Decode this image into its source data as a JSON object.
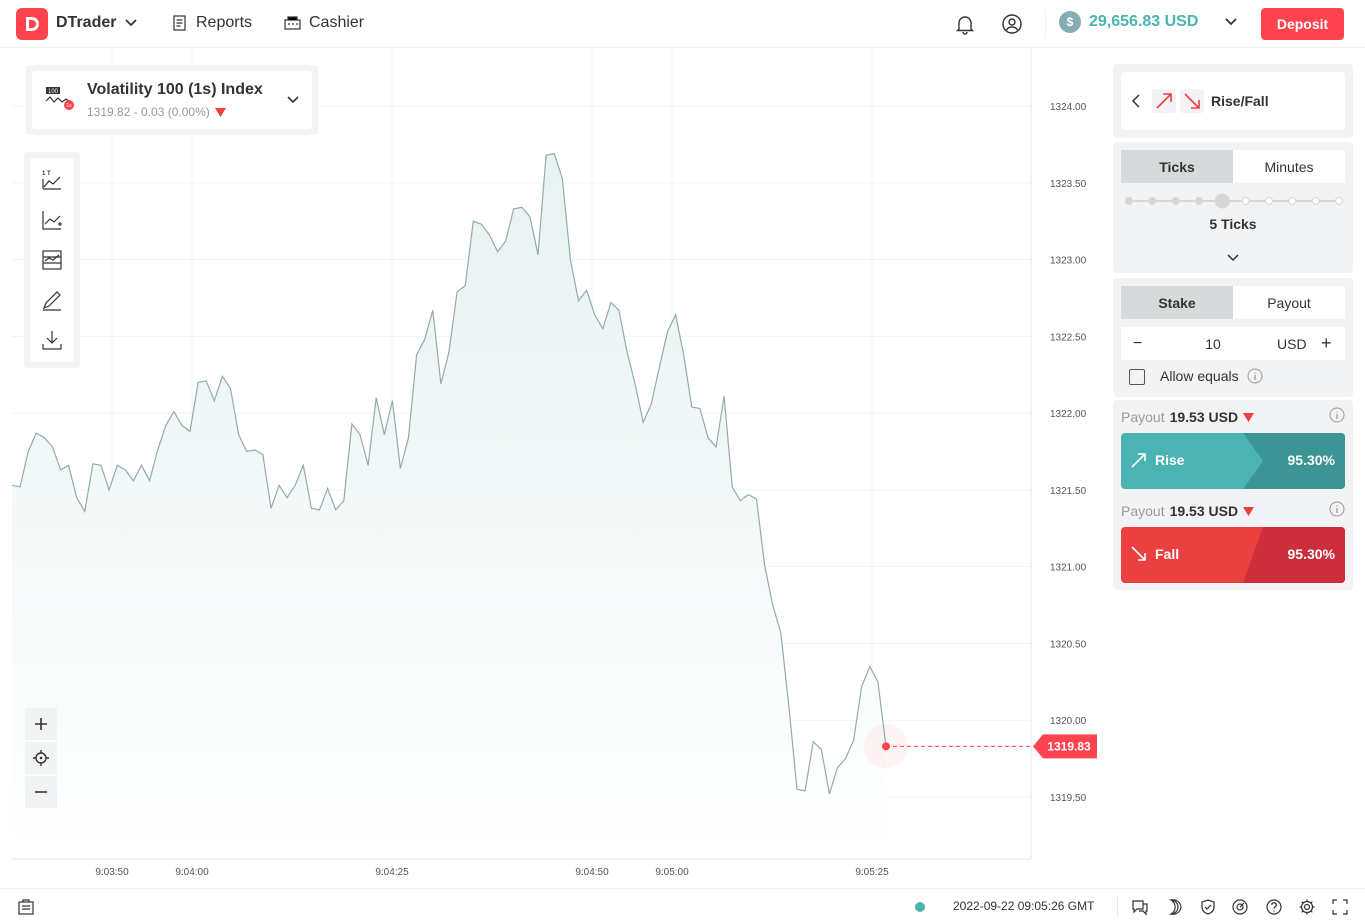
{
  "header": {
    "brand": "DTrader",
    "nav": [
      {
        "label": "Reports",
        "icon": "reports-icon"
      },
      {
        "label": "Cashier",
        "icon": "cashier-icon"
      }
    ],
    "balance": "29,656.83 USD",
    "deposit_label": "Deposit"
  },
  "market": {
    "name": "Volatility 100 (1s) Index",
    "price_change": "1319.82 - 0.03 (0.00%)",
    "badge_top": "100",
    "badge_bottom": "1s"
  },
  "chart_data": {
    "type": "area",
    "x_ticks": [
      "9:03:50",
      "9:04:00",
      "9:04:25",
      "9:04:50",
      "9:05:00",
      "9:05:25"
    ],
    "y_ticks": [
      "1324.00",
      "1323.50",
      "1323.00",
      "1322.50",
      "1322.00",
      "1321.50",
      "1321.00",
      "1320.50",
      "1320.00",
      "1319.50"
    ],
    "ylim": [
      1319.3,
      1324.2
    ],
    "current_price": "1319.83",
    "values": [
      1321.53,
      1321.52,
      1321.75,
      1321.87,
      1321.84,
      1321.78,
      1321.63,
      1321.66,
      1321.45,
      1321.36,
      1321.67,
      1321.66,
      1321.5,
      1321.66,
      1321.63,
      1321.56,
      1321.66,
      1321.56,
      1321.76,
      1321.92,
      1322.01,
      1321.92,
      1321.88,
      1322.2,
      1322.21,
      1322.08,
      1322.24,
      1322.16,
      1321.86,
      1321.75,
      1321.76,
      1321.73,
      1321.38,
      1321.53,
      1321.45,
      1321.53,
      1321.66,
      1321.38,
      1321.37,
      1321.51,
      1321.37,
      1321.43,
      1321.93,
      1321.86,
      1321.66,
      1322.1,
      1321.86,
      1322.08,
      1321.64,
      1321.84,
      1322.38,
      1322.48,
      1322.67,
      1322.19,
      1322.4,
      1322.79,
      1322.83,
      1323.25,
      1323.23,
      1323.16,
      1323.05,
      1323.12,
      1323.33,
      1323.34,
      1323.28,
      1323.03,
      1323.68,
      1323.69,
      1323.53,
      1323.0,
      1322.73,
      1322.8,
      1322.64,
      1322.55,
      1322.72,
      1322.67,
      1322.4,
      1322.19,
      1321.94,
      1322.06,
      1322.3,
      1322.53,
      1322.64,
      1322.38,
      1322.04,
      1322.03,
      1321.84,
      1321.78,
      1322.11,
      1321.52,
      1321.43,
      1321.47,
      1321.44,
      1321.01,
      1320.75,
      1320.57,
      1320.09,
      1319.55,
      1319.54,
      1319.86,
      1319.81,
      1319.52,
      1319.69,
      1319.75,
      1319.87,
      1320.22,
      1320.35,
      1320.25,
      1319.83
    ]
  },
  "trade": {
    "title": "Rise/Fall",
    "duration_tabs": [
      "Ticks",
      "Minutes"
    ],
    "duration_value": "5 Ticks",
    "amount_tabs": [
      "Stake",
      "Payout"
    ],
    "stake_value": "10",
    "currency": "USD",
    "minus": "−",
    "plus": "+",
    "allow_equals": "Allow equals",
    "payout_label": "Payout",
    "rise_payout": "19.53 USD",
    "fall_payout": "19.53 USD",
    "rise_label": "Rise",
    "rise_pct": "95.30%",
    "fall_label": "Fall",
    "fall_pct": "95.30%",
    "colors": {
      "rise": "#4bb4b3",
      "rise_dark": "#3d9494",
      "fall": "#ec3f3f",
      "fall_dark": "#cc2e3d"
    }
  },
  "footer": {
    "datetime": "2022-09-22 09:05:26 GMT"
  }
}
